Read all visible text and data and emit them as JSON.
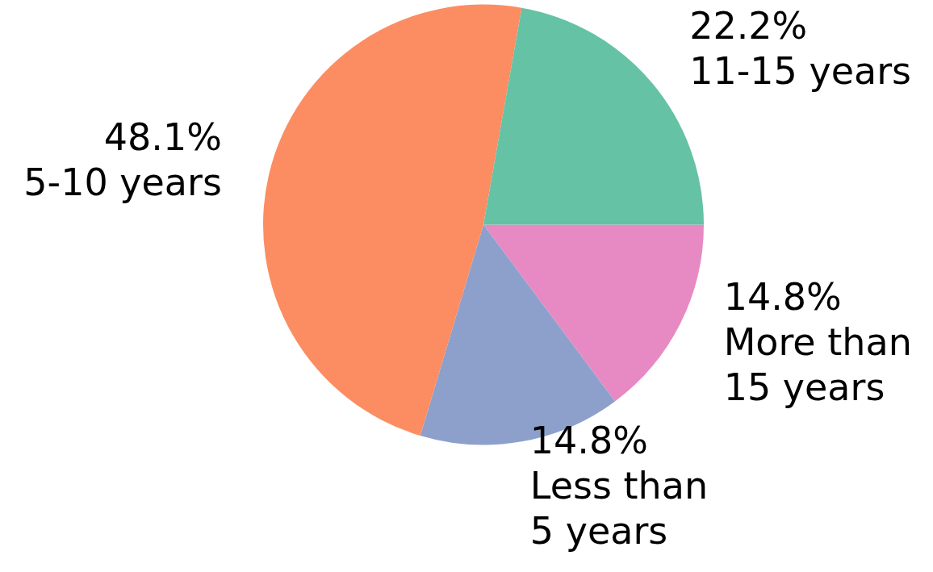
{
  "chart_data": {
    "type": "pie",
    "categories": [
      "More than\n15 years",
      "Less than\n5 years",
      "5-10 years",
      "11-15 years"
    ],
    "values": [
      14.8,
      14.8,
      48.1,
      22.2
    ],
    "value_labels": [
      "14.8%",
      "14.8%",
      "48.1%",
      "22.2%"
    ],
    "colors": [
      "#e78ac3",
      "#8da0cb",
      "#fc8d62",
      "#66c2a5"
    ],
    "legend": false
  }
}
